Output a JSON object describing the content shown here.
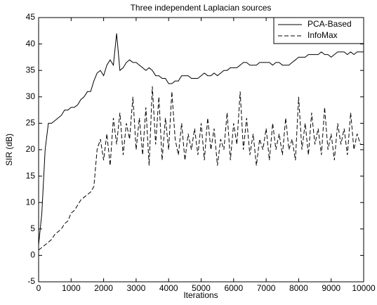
{
  "chart_data": {
    "type": "line",
    "title": "Three independent Laplacian sources",
    "x_label": "Iterations",
    "y_label": "SIR (dB)",
    "x": [
      0,
      100,
      200,
      300,
      400,
      500,
      600,
      700,
      800,
      900,
      1000,
      1100,
      1200,
      1300,
      1400,
      1500,
      1600,
      1700,
      1800,
      1900,
      2000,
      2100,
      2200,
      2300,
      2400,
      2500,
      2600,
      2700,
      2800,
      2900,
      3000,
      3100,
      3200,
      3300,
      3400,
      3500,
      3600,
      3700,
      3800,
      3900,
      4000,
      4100,
      4200,
      4300,
      4400,
      4500,
      4600,
      4700,
      4800,
      4900,
      5000,
      5100,
      5200,
      5300,
      5400,
      5500,
      5600,
      5700,
      5800,
      5900,
      6000,
      6100,
      6200,
      6300,
      6400,
      6500,
      6600,
      6700,
      6800,
      6900,
      7000,
      7100,
      7200,
      7300,
      7400,
      7500,
      7600,
      7700,
      7800,
      7900,
      8000,
      8100,
      8200,
      8300,
      8400,
      8500,
      8600,
      8700,
      8800,
      8900,
      9000,
      9100,
      9200,
      9300,
      9400,
      9500,
      9600,
      9700,
      9800,
      9900,
      10000
    ],
    "series": [
      {
        "name": "PCA-Based",
        "color": "#000000",
        "dash": false,
        "values": [
          2,
          8,
          20,
          25,
          25,
          25.5,
          26,
          26.5,
          27.5,
          27.5,
          28,
          28,
          28.5,
          29.5,
          30,
          31,
          31,
          33,
          34.5,
          35,
          34,
          36,
          37,
          36,
          42,
          35,
          35.5,
          36.5,
          37,
          36.5,
          36.5,
          36,
          35.5,
          35,
          35.5,
          35,
          34,
          34,
          33.5,
          33.5,
          32.5,
          32.5,
          33,
          33,
          34,
          34,
          34,
          33.5,
          33.5,
          33.5,
          34,
          34.5,
          34,
          34,
          34.5,
          34,
          34.5,
          35,
          35,
          35.5,
          35.5,
          35.5,
          36,
          36.5,
          36.5,
          36,
          36,
          36,
          36.5,
          36.5,
          36.5,
          36.5,
          36,
          36.5,
          36.5,
          36,
          36,
          36,
          36.5,
          37,
          37.5,
          37.5,
          37.5,
          38,
          38,
          38,
          38,
          38.5,
          38,
          38,
          37.5,
          38,
          38.5,
          38.5,
          38.5,
          38,
          38.5,
          38,
          38.5,
          38.5,
          38.5
        ]
      },
      {
        "name": "InfoMax",
        "color": "#000000",
        "dash": true,
        "values": [
          1,
          1.5,
          2,
          2.5,
          3,
          4,
          4.5,
          5,
          6,
          6.5,
          8,
          8.5,
          9.5,
          10.5,
          11,
          11.5,
          12,
          13,
          20,
          22,
          18,
          23,
          17,
          26,
          21,
          27,
          19,
          25,
          22,
          30,
          20,
          26,
          19,
          28,
          17,
          32,
          21,
          30,
          18,
          26,
          20,
          31,
          22,
          19,
          25,
          18,
          23,
          20,
          24,
          19,
          25,
          18,
          26,
          20,
          24,
          17,
          22,
          20,
          27,
          18,
          25,
          21,
          31,
          20,
          26,
          19,
          23,
          17,
          22,
          20,
          24,
          18,
          25,
          20,
          23,
          19,
          26,
          20,
          22,
          18,
          30,
          20,
          25,
          19,
          27,
          21,
          24,
          19,
          28,
          20,
          23,
          18,
          25,
          21,
          24,
          19,
          27,
          20,
          23,
          21,
          21
        ]
      }
    ],
    "xlim": [
      0,
      10000
    ],
    "ylim": [
      -5,
      45
    ],
    "xticks": [
      0,
      1000,
      2000,
      3000,
      4000,
      5000,
      6000,
      7000,
      8000,
      9000,
      10000
    ],
    "yticks": [
      -5,
      0,
      5,
      10,
      15,
      20,
      25,
      30,
      35,
      40,
      45
    ],
    "grid": false,
    "legend": "upper right"
  }
}
